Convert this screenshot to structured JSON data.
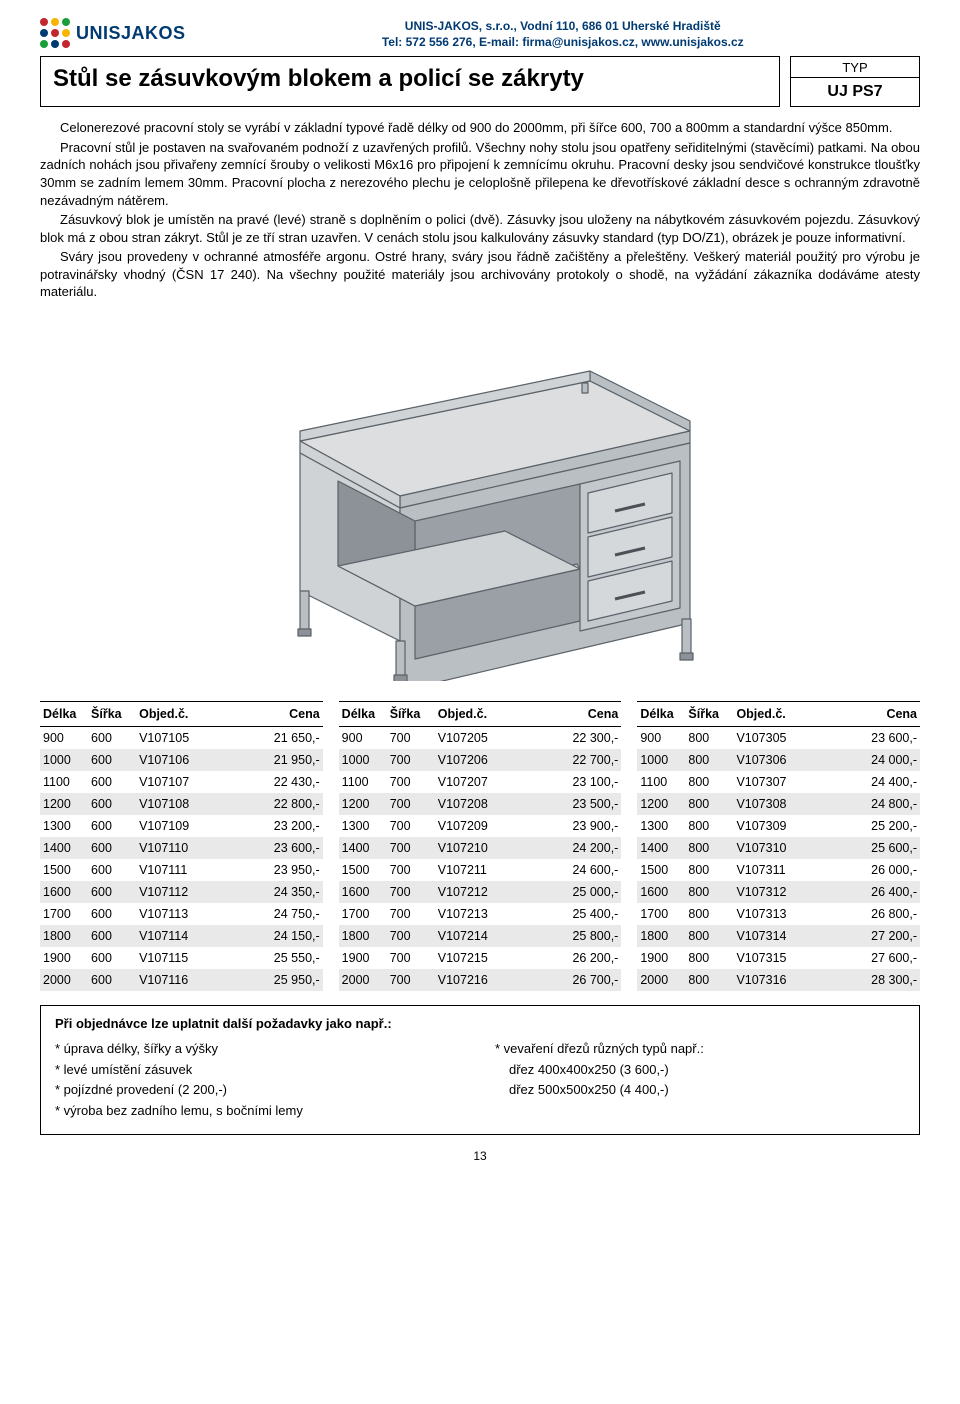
{
  "company": {
    "logo_text": "UNISJAKOS",
    "line1": "UNIS-JAKOS, s.r.o., Vodní 110, 686 01 Uherské Hradiště",
    "line2": "Tel: 572 556 276, E-mail: firma@unisjakos.cz, www.unisjakos.cz",
    "colors": {
      "blue": "#003a72",
      "red": "#c1272d",
      "yellow": "#f7b500",
      "green": "#1a9e3b"
    }
  },
  "title": "Stůl se zásuvkovým blokem a policí se zákryty",
  "type_label": "TYP",
  "type_code": "UJ PS7",
  "paragraphs": [
    "Celonerezové pracovní stoly se vyrábí v základní typové řadě délky od 900 do 2000mm, při šířce 600, 700 a 800mm a standardní výšce 850mm.",
    "Pracovní stůl je postaven na svařovaném podnoží z uzavřených profilů. Všechny nohy stolu jsou opatřeny seřiditelnými (stavěcími) patkami. Na obou zadních nohách jsou přivařeny zemnící šrouby o velikosti M6x16 pro připojení k zemnícímu okruhu. Pracovní desky jsou sendvičové konstrukce tloušťky 30mm se zadním lemem 30mm. Pracovní plocha z nerezového plechu  je celoplošně přilepena ke dřevotřískové základní desce s ochranným zdravotně nezávadným nátěrem.",
    "Zásuvkový blok je umístěn na pravé (levé) straně s doplněním o polici (dvě). Zásuvky jsou uloženy na nábytkovém zásuvkovém pojezdu. Zásuvkový blok má z obou stran zákryt. Stůl je ze tří stran uzavřen. V cenách stolu jsou kalkulovány zásuvky standard (typ DO/Z1), obrázek je pouze informativní.",
    "Sváry jsou provedeny v ochranné atmosféře argonu. Ostré hrany, sváry jsou řádně začištěny a přeleštěny. Veškerý materiál použitý pro výrobu je potravinářsky vhodný (ČSN 17 240). Na všechny použité materiály jsou archivovány protokoly o shodě, na vyžádání zákazníka dodáváme atesty materiálu."
  ],
  "illustration": {
    "top_fill": "#dcdedf",
    "side_fill": "#b9bfc3",
    "front_fill": "#cfd3d6",
    "line": "#5a6168"
  },
  "table_headers": {
    "delka": "Délka",
    "sirka": "Šířka",
    "objedc": "Objed.č.",
    "cena": "Cena"
  },
  "tables": [
    {
      "rows": [
        [
          "900",
          "600",
          "V107105",
          "21 650,-"
        ],
        [
          "1000",
          "600",
          "V107106",
          "21 950,-"
        ],
        [
          "1100",
          "600",
          "V107107",
          "22 430,-"
        ],
        [
          "1200",
          "600",
          "V107108",
          "22 800,-"
        ],
        [
          "1300",
          "600",
          "V107109",
          "23 200,-"
        ],
        [
          "1400",
          "600",
          "V107110",
          "23 600,-"
        ],
        [
          "1500",
          "600",
          "V107111",
          "23 950,-"
        ],
        [
          "1600",
          "600",
          "V107112",
          "24 350,-"
        ],
        [
          "1700",
          "600",
          "V107113",
          "24 750,-"
        ],
        [
          "1800",
          "600",
          "V107114",
          "24 150,-"
        ],
        [
          "1900",
          "600",
          "V107115",
          "25 550,-"
        ],
        [
          "2000",
          "600",
          "V107116",
          "25 950,-"
        ]
      ]
    },
    {
      "rows": [
        [
          "900",
          "700",
          "V107205",
          "22 300,-"
        ],
        [
          "1000",
          "700",
          "V107206",
          "22 700,-"
        ],
        [
          "1100",
          "700",
          "V107207",
          "23 100,-"
        ],
        [
          "1200",
          "700",
          "V107208",
          "23 500,-"
        ],
        [
          "1300",
          "700",
          "V107209",
          "23 900,-"
        ],
        [
          "1400",
          "700",
          "V107210",
          "24 200,-"
        ],
        [
          "1500",
          "700",
          "V107211",
          "24 600,-"
        ],
        [
          "1600",
          "700",
          "V107212",
          "25 000,-"
        ],
        [
          "1700",
          "700",
          "V107213",
          "25 400,-"
        ],
        [
          "1800",
          "700",
          "V107214",
          "25 800,-"
        ],
        [
          "1900",
          "700",
          "V107215",
          "26 200,-"
        ],
        [
          "2000",
          "700",
          "V107216",
          "26 700,-"
        ]
      ]
    },
    {
      "rows": [
        [
          "900",
          "800",
          "V107305",
          "23 600,-"
        ],
        [
          "1000",
          "800",
          "V107306",
          "24 000,-"
        ],
        [
          "1100",
          "800",
          "V107307",
          "24 400,-"
        ],
        [
          "1200",
          "800",
          "V107308",
          "24 800,-"
        ],
        [
          "1300",
          "800",
          "V107309",
          "25 200,-"
        ],
        [
          "1400",
          "800",
          "V107310",
          "25 600,-"
        ],
        [
          "1500",
          "800",
          "V107311",
          "26 000,-"
        ],
        [
          "1600",
          "800",
          "V107312",
          "26 400,-"
        ],
        [
          "1700",
          "800",
          "V107313",
          "26 800,-"
        ],
        [
          "1800",
          "800",
          "V107314",
          "27 200,-"
        ],
        [
          "1900",
          "800",
          "V107315",
          "27 600,-"
        ],
        [
          "2000",
          "800",
          "V107316",
          "28 300,-"
        ]
      ]
    }
  ],
  "footer": {
    "header": "Při objednávce lze uplatnit další požadavky jako např.:",
    "left": [
      "úprava délky, šířky a výšky",
      "levé umístění zásuvek",
      "pojízdné provedení (2 200,-)",
      "výroba bez zadního lemu, s bočními lemy"
    ],
    "right_first": "vevaření dřezů různých typů např.:",
    "right_rest": [
      "dřez 400x400x250 (3 600,-)",
      "dřez 500x500x250 (4 400,-)"
    ]
  },
  "page_number": "13"
}
